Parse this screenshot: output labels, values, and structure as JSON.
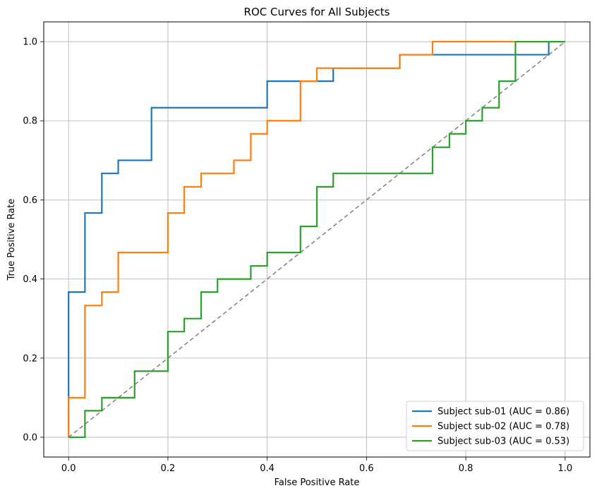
{
  "chart_data": {
    "type": "line",
    "title": "ROC Curves for All Subjects",
    "xlabel": "False Positive Rate",
    "ylabel": "True Positive Rate",
    "xlim": [
      -0.05,
      1.05
    ],
    "ylim": [
      -0.05,
      1.05
    ],
    "xticks": [
      "0.0",
      "0.2",
      "0.4",
      "0.6",
      "0.8",
      "1.0"
    ],
    "yticks": [
      "0.0",
      "0.2",
      "0.4",
      "0.6",
      "0.8",
      "1.0"
    ],
    "grid": true,
    "legend_position": "lower-right",
    "diagonal": {
      "x": [
        0,
        1
      ],
      "y": [
        0,
        1
      ],
      "color": "#808080",
      "style": "dashed"
    },
    "series": [
      {
        "name": "Subject sub-01 (AUC = 0.86)",
        "color": "#1f77b4",
        "x": [
          0,
          0,
          0,
          0.033,
          0.033,
          0.067,
          0.067,
          0.1,
          0.1,
          0.167,
          0.167,
          0.4,
          0.4,
          0.533,
          0.533,
          0.667,
          0.667,
          0.967,
          0.967,
          1.0
        ],
        "y": [
          0,
          0.1,
          0.367,
          0.367,
          0.567,
          0.567,
          0.667,
          0.667,
          0.7,
          0.7,
          0.833,
          0.833,
          0.9,
          0.9,
          0.933,
          0.933,
          0.967,
          0.967,
          1.0,
          1.0
        ]
      },
      {
        "name": "Subject sub-02 (AUC = 0.78)",
        "color": "#ff7f0e",
        "x": [
          0,
          0,
          0.033,
          0.033,
          0.067,
          0.067,
          0.1,
          0.1,
          0.2,
          0.2,
          0.233,
          0.233,
          0.267,
          0.267,
          0.333,
          0.333,
          0.367,
          0.367,
          0.4,
          0.4,
          0.467,
          0.467,
          0.5,
          0.5,
          0.667,
          0.667,
          0.733,
          0.733,
          1.0
        ],
        "y": [
          0,
          0.1,
          0.1,
          0.333,
          0.333,
          0.367,
          0.367,
          0.467,
          0.467,
          0.567,
          0.567,
          0.633,
          0.633,
          0.667,
          0.667,
          0.7,
          0.7,
          0.767,
          0.767,
          0.8,
          0.8,
          0.9,
          0.9,
          0.933,
          0.933,
          0.967,
          0.967,
          1.0,
          1.0
        ]
      },
      {
        "name": "Subject sub-03 (AUC = 0.53)",
        "color": "#2ca02c",
        "x": [
          0,
          0.033,
          0.033,
          0.067,
          0.067,
          0.133,
          0.133,
          0.2,
          0.2,
          0.233,
          0.233,
          0.267,
          0.267,
          0.3,
          0.3,
          0.367,
          0.367,
          0.4,
          0.4,
          0.467,
          0.467,
          0.5,
          0.5,
          0.533,
          0.533,
          0.733,
          0.733,
          0.767,
          0.767,
          0.8,
          0.8,
          0.833,
          0.833,
          0.867,
          0.867,
          0.9,
          0.9,
          1.0
        ],
        "y": [
          0,
          0,
          0.067,
          0.067,
          0.1,
          0.1,
          0.167,
          0.167,
          0.267,
          0.267,
          0.3,
          0.3,
          0.367,
          0.367,
          0.4,
          0.4,
          0.433,
          0.433,
          0.467,
          0.467,
          0.533,
          0.533,
          0.633,
          0.633,
          0.667,
          0.667,
          0.733,
          0.733,
          0.767,
          0.767,
          0.8,
          0.8,
          0.833,
          0.833,
          0.9,
          0.9,
          1.0,
          1.0
        ]
      }
    ]
  }
}
